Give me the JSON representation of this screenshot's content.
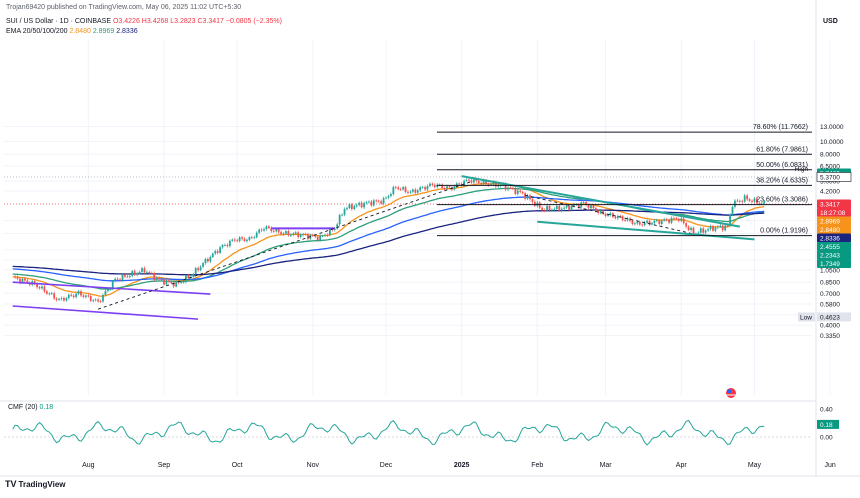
{
  "header": {
    "published": "Trojan69420 published on TradingView.com, May 06, 2025 11:02 UTC+5:30",
    "symbol": "SUI / US Dollar · 1D · COINBASE",
    "ohlc": {
      "o": "O3.4226",
      "h": "H3.4268",
      "l": "L3.2823",
      "c": "C3.3417",
      "chg": "−0.0805 (−2.35%)"
    },
    "ema_label": "EMA 20/50/100/200",
    "ema_values": [
      "2.8480",
      "2.8969",
      "2.8336"
    ]
  },
  "currency": "USD",
  "footer": {
    "logo": "TV",
    "brand": "TradingView"
  },
  "cmf_label": {
    "name": "CMF (20)",
    "value": "0.18"
  },
  "colors": {
    "up": "#26a69a",
    "down": "#ef5350",
    "ema20": "#f7931a",
    "ema50": "#2e9e7a",
    "ema100": "#2962ff",
    "ema200": "#1a237e",
    "trend": "#26a69a",
    "purple": "#7e3ff2",
    "cmf": "#26a69a"
  },
  "chart_data": {
    "type": "candlestick",
    "scale": "log",
    "y_ticks": [
      "13.0000",
      "10.0000",
      "8.0000",
      "6.5000",
      "5.0000",
      "4.2000",
      "2.5000",
      "2.0000",
      "1.5000",
      "1.2500",
      "1.0500",
      "0.8500",
      "0.7000",
      "0.5800",
      "0.4800",
      "0.4000",
      "0.3350"
    ],
    "x_ticks": [
      "Aug",
      "Sep",
      "Oct",
      "Nov",
      "Dec",
      "2025",
      "Feb",
      "Mar",
      "Apr",
      "May",
      "Jun"
    ],
    "fib_levels": [
      {
        "label": "78.60% (11.7662)",
        "value": 11.7662
      },
      {
        "label": "61.80% (7.9861)",
        "value": 7.9861
      },
      {
        "label": "50.00% (6.0831)",
        "value": 6.0831
      },
      {
        "label": "38.20% (4.6335)",
        "value": 4.6335
      },
      {
        "label": "23.60% (3.3086)",
        "value": 3.3086
      },
      {
        "label": "0.00% (1.9196)",
        "value": 1.9196
      }
    ],
    "price_tags": [
      {
        "text": "5.7469",
        "value": 5.7469,
        "color": "#089981"
      },
      {
        "text": "3.3417",
        "value": 3.3417,
        "color": "#f23645"
      },
      {
        "text": "18:27:08",
        "value": 3.16,
        "color": "#f23645"
      },
      {
        "text": "2.8969",
        "value": 2.8969,
        "color": "#f7931a"
      },
      {
        "text": "2.8480",
        "value": 2.848,
        "color": "#f7931a"
      },
      {
        "text": "2.8336",
        "value": 2.8336,
        "color": "#1a237e"
      },
      {
        "text": "2.4555",
        "value": 2.4555,
        "color": "#089981"
      },
      {
        "text": "2.2343",
        "value": 2.2343,
        "color": "#089981"
      },
      {
        "text": "1.7349",
        "value": 1.7349,
        "color": "#089981"
      }
    ],
    "high_tag": {
      "label": "High",
      "value": "5.3700"
    },
    "low_tag": {
      "label": "Low",
      "value": "0.4623"
    },
    "cmf_ticks": [
      "0.40",
      "0.20",
      "0.00"
    ],
    "cmf_tag": "0.18"
  }
}
